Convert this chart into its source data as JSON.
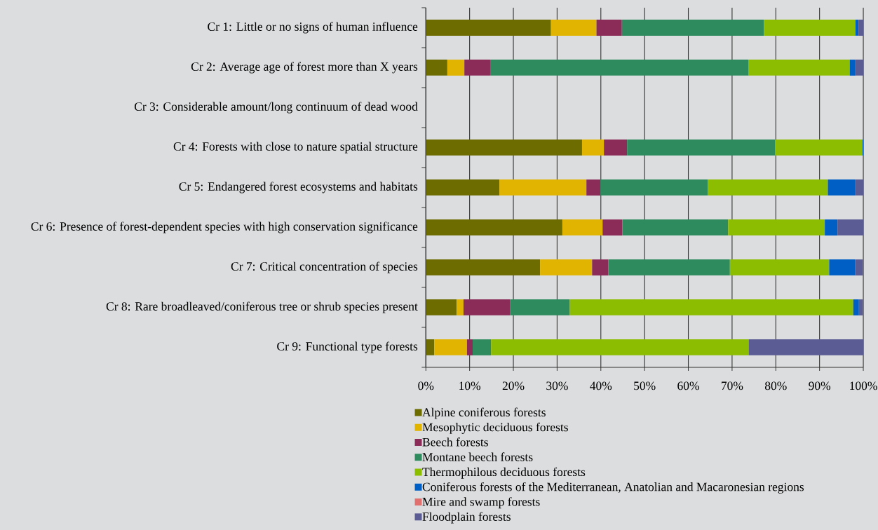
{
  "chart_data": {
    "type": "bar",
    "orientation": "horizontal",
    "stacked": true,
    "categories": [
      "Cr 1: Little or no signs of human influence",
      "Cr 2: Average age of forest more than X years",
      "Cr 3: Considerable amount/long continuum of dead wood",
      "Cr 4: Forests with close to nature spatial structure",
      "Cr 5: Endangered forest ecosystems and habitats",
      "Cr 6: Presence of forest-dependent species with high conservation significance",
      "Cr 7: Critical concentration of species",
      "Cr 8: Rare broadleaved/coniferous tree or shrub species present",
      "Cr 9: Functional type forests"
    ],
    "series": [
      {
        "name": "Alpine coniferous forests",
        "color": "#6c6c00",
        "values": [
          28.6,
          4.9,
          null,
          35.7,
          16.8,
          31.2,
          26.1,
          7.0,
          1.9
        ]
      },
      {
        "name": "Mesophytic deciduous forests",
        "color": "#e0b400",
        "values": [
          10.4,
          3.9,
          null,
          5.0,
          19.9,
          9.2,
          11.9,
          1.6,
          7.5
        ]
      },
      {
        "name": "Beech forests",
        "color": "#8b2b58",
        "values": [
          5.8,
          5.9,
          null,
          5.3,
          3.2,
          4.5,
          3.7,
          10.7,
          1.3
        ]
      },
      {
        "name": "Montane beech forests",
        "color": "#2d8b5e",
        "values": [
          32.5,
          59.1,
          null,
          33.8,
          24.5,
          24.2,
          27.8,
          13.6,
          4.2
        ]
      },
      {
        "name": "Thermophilous deciduous forests",
        "color": "#8dbd00",
        "values": [
          20.9,
          23.1,
          null,
          20.0,
          27.5,
          22.1,
          22.7,
          64.8,
          58.9
        ]
      },
      {
        "name": "Coniferous forests of the Mediterranean, Anatolian and Macaronesian regions",
        "color": "#005fc4",
        "values": [
          0.7,
          1.3,
          null,
          0.2,
          6.3,
          2.9,
          5.9,
          1.3,
          null
        ]
      },
      {
        "name": "Mire and swamp forests",
        "color": "#e07070",
        "values": [
          null,
          null,
          null,
          null,
          null,
          null,
          null,
          null,
          null
        ]
      },
      {
        "name": "Floodplain forests",
        "color": "#5c5c94",
        "values": [
          1.1,
          1.8,
          null,
          null,
          1.8,
          5.9,
          1.8,
          0.9,
          26.2
        ]
      }
    ],
    "xlim": [
      0,
      100
    ],
    "xticks": [
      {
        "value": 0,
        "label": "0%"
      },
      {
        "value": 10,
        "label": "10%"
      },
      {
        "value": 20,
        "label": "20%"
      },
      {
        "value": 30,
        "label": "30%"
      },
      {
        "value": 40,
        "label": "40%"
      },
      {
        "value": 50,
        "label": "50%"
      },
      {
        "value": 60,
        "label": "60%"
      },
      {
        "value": 70,
        "label": "70%"
      },
      {
        "value": 80,
        "label": "80%"
      },
      {
        "value": 90,
        "label": "90%"
      },
      {
        "value": 100,
        "label": "100%"
      }
    ],
    "grid": "x",
    "legend": "bottom"
  }
}
